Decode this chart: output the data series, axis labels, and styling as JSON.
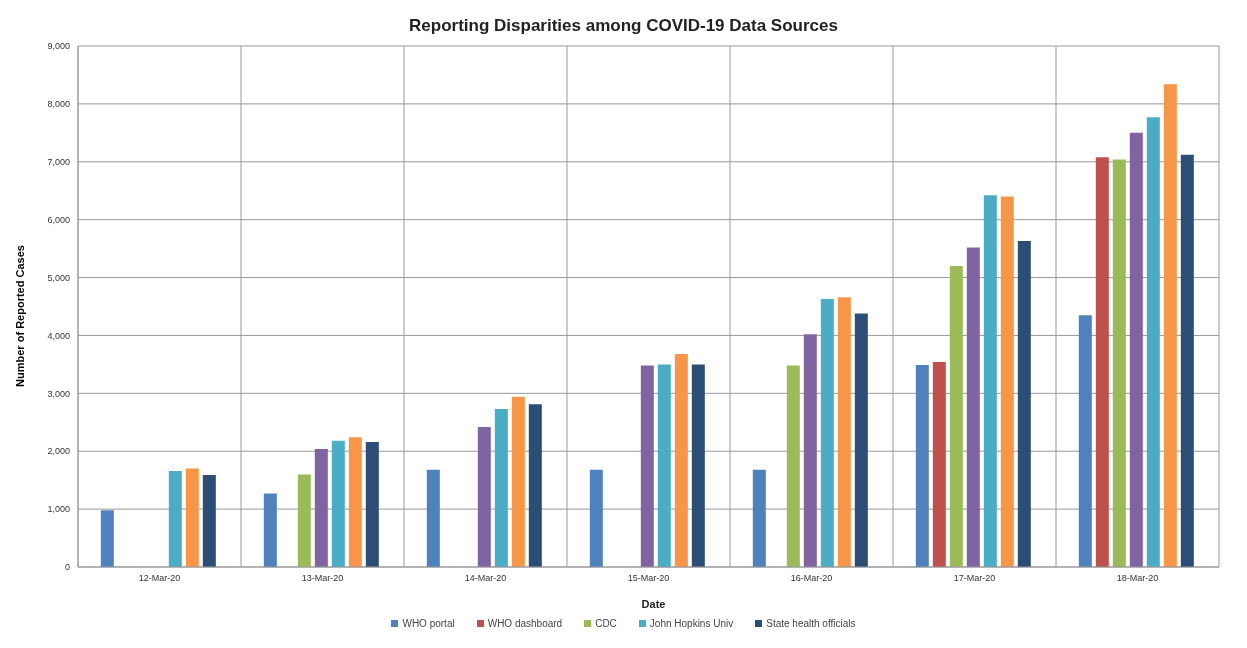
{
  "chart_data": {
    "type": "bar",
    "title": "Reporting Disparities among COVID-19 Data Sources",
    "xlabel": "Date",
    "ylabel": "Number of Reported Cases",
    "categories": [
      "12-Mar-20",
      "13-Mar-20",
      "14-Mar-20",
      "15-Mar-20",
      "16-Mar-20",
      "17-Mar-20",
      "18-Mar-20"
    ],
    "series": [
      {
        "name": "WHO portal",
        "color": "#4f81bd",
        "values": [
          980,
          1270,
          1680,
          1680,
          1680,
          3490,
          4350
        ]
      },
      {
        "name": "WHO dashboard",
        "color": "#c0504d",
        "values": [
          null,
          null,
          null,
          null,
          null,
          3540,
          7080
        ]
      },
      {
        "name": "CDC",
        "color": "#9bbb59",
        "values": [
          null,
          1600,
          null,
          null,
          3480,
          5200,
          7040
        ]
      },
      {
        "color": "#8064a2",
        "values": [
          null,
          2040,
          2420,
          3480,
          4020,
          5520,
          7500
        ]
      },
      {
        "name": "John Hopkins Univ",
        "color": "#4bacc6",
        "values": [
          1660,
          2180,
          2730,
          3500,
          4630,
          6420,
          7770
        ]
      },
      {
        "color": "#f79646",
        "values": [
          1700,
          2240,
          2940,
          3680,
          4660,
          6400,
          8340
        ]
      },
      {
        "name": "State health officials",
        "color": "#2c4d75",
        "values": [
          1590,
          2160,
          2810,
          3500,
          4380,
          5630,
          7120
        ]
      }
    ],
    "ylim": [
      0,
      9000
    ],
    "yticks": [
      {
        "value": 0,
        "label": "0"
      },
      {
        "value": 1000,
        "label": "1,000"
      },
      {
        "value": 2000,
        "label": "2,000"
      },
      {
        "value": 3000,
        "label": "3,000"
      },
      {
        "value": 4000,
        "label": "4,000"
      },
      {
        "value": 5000,
        "label": "5,000"
      },
      {
        "value": 6000,
        "label": "6,000"
      },
      {
        "value": 7000,
        "label": "7,000"
      },
      {
        "value": 8000,
        "label": "8,000"
      },
      {
        "value": 9000,
        "label": "9,000"
      }
    ],
    "grid": true,
    "legend": "bottom"
  }
}
